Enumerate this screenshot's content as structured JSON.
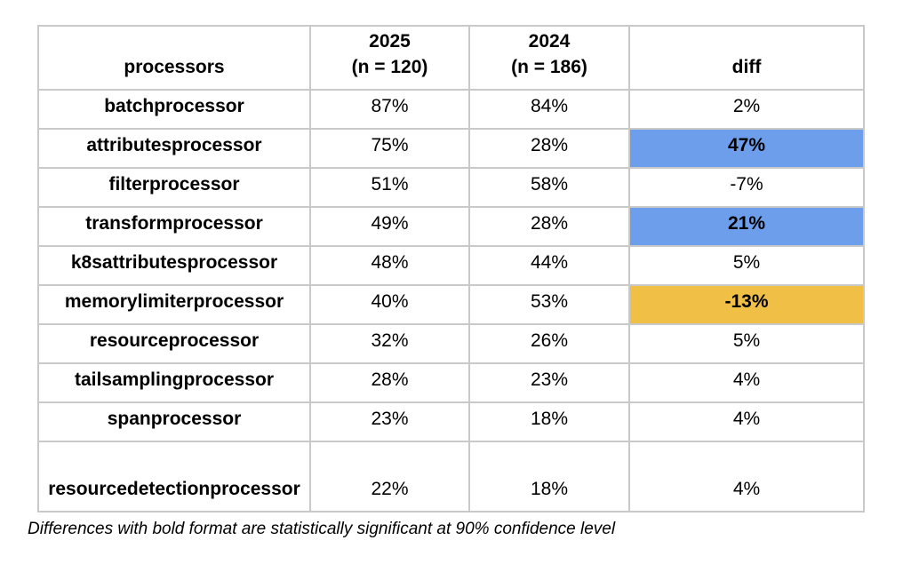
{
  "page": {
    "footnote": "Differences with bold format are statistically significant at 90% confidence level"
  },
  "colors": {
    "highlight_positive_blue": "#6d9eeb",
    "highlight_negative_orange": "#f0bf45",
    "border_gray": "#c9c9c9"
  },
  "table": {
    "header": {
      "processors": "processors",
      "y2025_line1": "2025",
      "y2025_line2": "(n = 120)",
      "y2024_line1": "2024",
      "y2024_line2": "(n = 186)",
      "diff": "diff"
    },
    "rows": [
      {
        "name": "batchprocessor",
        "v2025": "87%",
        "v2024": "84%",
        "diff": "2%",
        "highlight": "none",
        "tall": false
      },
      {
        "name": "attributesprocessor",
        "v2025": "75%",
        "v2024": "28%",
        "diff": "47%",
        "highlight": "blue",
        "tall": false
      },
      {
        "name": "filterprocessor",
        "v2025": "51%",
        "v2024": "58%",
        "diff": "-7%",
        "highlight": "none",
        "tall": false
      },
      {
        "name": "transformprocessor",
        "v2025": "49%",
        "v2024": "28%",
        "diff": "21%",
        "highlight": "blue",
        "tall": false
      },
      {
        "name": "k8sattributesprocessor",
        "v2025": "48%",
        "v2024": "44%",
        "diff": "5%",
        "highlight": "none",
        "tall": false
      },
      {
        "name": "memorylimiterprocessor",
        "v2025": "40%",
        "v2024": "53%",
        "diff": "-13%",
        "highlight": "orange",
        "tall": false
      },
      {
        "name": "resourceprocessor",
        "v2025": "32%",
        "v2024": "26%",
        "diff": "5%",
        "highlight": "none",
        "tall": false
      },
      {
        "name": "tailsamplingprocessor",
        "v2025": "28%",
        "v2024": "23%",
        "diff": "4%",
        "highlight": "none",
        "tall": false
      },
      {
        "name": "spanprocessor",
        "v2025": "23%",
        "v2024": "18%",
        "diff": "4%",
        "highlight": "none",
        "tall": false
      },
      {
        "name": "resourcedetectionprocessor",
        "v2025": "22%",
        "v2024": "18%",
        "diff": "4%",
        "highlight": "none",
        "tall": true
      }
    ]
  },
  "chart_data": {
    "type": "table",
    "title": "",
    "columns": [
      "processors",
      "2025 (n = 120)",
      "2024 (n = 186)",
      "diff"
    ],
    "sample_sizes": {
      "2025": 120,
      "2024": 186
    },
    "rows": [
      {
        "processor": "batchprocessor",
        "pct_2025": 87,
        "pct_2024": 84,
        "diff_pct": 2,
        "significant": false
      },
      {
        "processor": "attributesprocessor",
        "pct_2025": 75,
        "pct_2024": 28,
        "diff_pct": 47,
        "significant": true
      },
      {
        "processor": "filterprocessor",
        "pct_2025": 51,
        "pct_2024": 58,
        "diff_pct": -7,
        "significant": false
      },
      {
        "processor": "transformprocessor",
        "pct_2025": 49,
        "pct_2024": 28,
        "diff_pct": 21,
        "significant": true
      },
      {
        "processor": "k8sattributesprocessor",
        "pct_2025": 48,
        "pct_2024": 44,
        "diff_pct": 5,
        "significant": false
      },
      {
        "processor": "memorylimiterprocessor",
        "pct_2025": 40,
        "pct_2024": 53,
        "diff_pct": -13,
        "significant": true
      },
      {
        "processor": "resourceprocessor",
        "pct_2025": 32,
        "pct_2024": 26,
        "diff_pct": 5,
        "significant": false
      },
      {
        "processor": "tailsamplingprocessor",
        "pct_2025": 28,
        "pct_2024": 23,
        "diff_pct": 4,
        "significant": false
      },
      {
        "processor": "spanprocessor",
        "pct_2025": 23,
        "pct_2024": 18,
        "diff_pct": 4,
        "significant": false
      },
      {
        "processor": "resourcedetectionprocessor",
        "pct_2025": 22,
        "pct_2024": 18,
        "diff_pct": 4,
        "significant": false
      }
    ],
    "annotation": "Differences with bold format are statistically significant at 90% confidence level",
    "legend_position": "none",
    "grid": true
  }
}
